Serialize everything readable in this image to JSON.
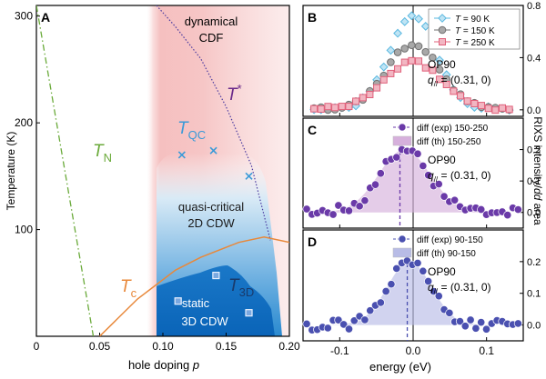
{
  "chart_data": [
    {
      "panel": "A",
      "type": "line",
      "xlabel_prefix": "hole doping",
      "xlabel_var": "p",
      "ylabel": "Temperature (K)",
      "xlim": [
        0,
        0.2
      ],
      "ylim": [
        0,
        310
      ],
      "xticks": [
        0,
        0.05,
        0.1,
        0.15,
        0.2
      ],
      "xtick_labels": [
        "0",
        "0.05",
        "0.10",
        "0.15",
        "0.20"
      ],
      "yticks": [
        100,
        200,
        300
      ],
      "ytick_labels": [
        "100",
        "200",
        "300"
      ],
      "region_labels": {
        "dynamical_1": "dynamical",
        "dynamical_2": "CDF",
        "quasi_1": "quasi-critical",
        "quasi_2": "2D CDW",
        "static_1": "static",
        "static_2": "3D CDW"
      },
      "curve_labels": {
        "tn_main": "T",
        "tn_sub": "N",
        "tqc_main": "T",
        "tqc_sub": "QC",
        "tstar_main": "T",
        "tstar_sup": "*",
        "tc_main": "T",
        "tc_sub": "c",
        "t3d_main": "T",
        "t3d_sub": "3D"
      },
      "series": [
        {
          "name": "TN",
          "color": "#6aaa3a",
          "x": [
            0.0,
            0.045
          ],
          "y": [
            310,
            0
          ]
        },
        {
          "name": "T*",
          "color": "#4a3aa0",
          "x": [
            0.095,
            0.11,
            0.13,
            0.15,
            0.17,
            0.185
          ],
          "y": [
            310,
            290,
            260,
            215,
            160,
            90
          ]
        },
        {
          "name": "Tc",
          "color": "#e8883a",
          "x": [
            0.05,
            0.08,
            0.11,
            0.13,
            0.16,
            0.18,
            0.2
          ],
          "y": [
            0,
            35,
            62,
            74,
            88,
            93,
            88
          ]
        },
        {
          "name": "TQC",
          "color": "#3a9ad8",
          "x": [
            0.115,
            0.14,
            0.168
          ],
          "y": [
            170,
            174,
            150
          ]
        },
        {
          "name": "T3D",
          "color": "#2a6ac8",
          "x": [
            0.112,
            0.142,
            0.168
          ],
          "y": [
            33,
            57,
            22
          ]
        }
      ]
    },
    {
      "panel": "B",
      "type": "scatter",
      "ylim": [
        -0.05,
        0.8
      ],
      "yticks": [
        0.0,
        0.4,
        0.8
      ],
      "ytick_labels": [
        "0.0",
        "0.4",
        "0.8"
      ],
      "annotation_1": "OP90",
      "annotation_2_var": "q",
      "annotation_2_sub": "//",
      "annotation_2_val": " = (0.31, 0)",
      "legend_position": "top-right",
      "series": [
        {
          "name": "T = 90 K",
          "name_var": "T",
          "name_val": " = 90 K",
          "color": "#5ab8e0",
          "fill": "#bfe4f4",
          "marker": "diamond",
          "peak": 0.72
        },
        {
          "name": "T = 150 K",
          "name_var": "T",
          "name_val": " = 150 K",
          "color": "#707070",
          "fill": "#a8a8a8",
          "marker": "circle",
          "peak": 0.5
        },
        {
          "name": "T = 250 K",
          "name_var": "T",
          "name_val": " = 250 K",
          "color": "#e0607a",
          "fill": "#f2b6c2",
          "marker": "square",
          "peak": 0.36
        }
      ]
    },
    {
      "panel": "C",
      "type": "scatter",
      "ylim": [
        -0.05,
        0.3
      ],
      "yticks": [
        0.0,
        0.1,
        0.2
      ],
      "ytick_labels": [
        "0.0",
        "0.1",
        "0.2"
      ],
      "annotation_1": "OP90",
      "annotation_2_var": "q",
      "annotation_2_sub": "//",
      "annotation_2_val": " = (0.31, 0)",
      "legend_position": "top-right",
      "series": [
        {
          "name": "diff (exp) 150-250",
          "color": "#6a3aa8",
          "type": "points"
        },
        {
          "name": "diff (th) 150-250",
          "color": "#d6b0dc",
          "type": "area"
        }
      ]
    },
    {
      "panel": "D",
      "type": "scatter",
      "xlabel": "energy (eV)",
      "xlim": [
        -0.15,
        0.15
      ],
      "xticks": [
        -0.1,
        0.0,
        0.1
      ],
      "xtick_labels": [
        "-0.1",
        "0.0",
        "0.1"
      ],
      "ylim": [
        -0.05,
        0.3
      ],
      "yticks": [
        0.0,
        0.1,
        0.2
      ],
      "ytick_labels": [
        "0.0",
        "0.1",
        "0.2"
      ],
      "annotation_1": "OP90",
      "annotation_2_var": "q",
      "annotation_2_sub": "//",
      "annotation_2_val": " = (0.31, 0)",
      "legend_position": "top-right",
      "series": [
        {
          "name": "diff (exp) 90-150",
          "color": "#4a50b0",
          "type": "points"
        },
        {
          "name": "diff (th) 90-150",
          "color": "#b8bce6",
          "type": "area"
        }
      ]
    }
  ],
  "right_ylabel_main": "RIXS intensity/",
  "right_ylabel_italic": "dd",
  "right_ylabel_end": " area"
}
